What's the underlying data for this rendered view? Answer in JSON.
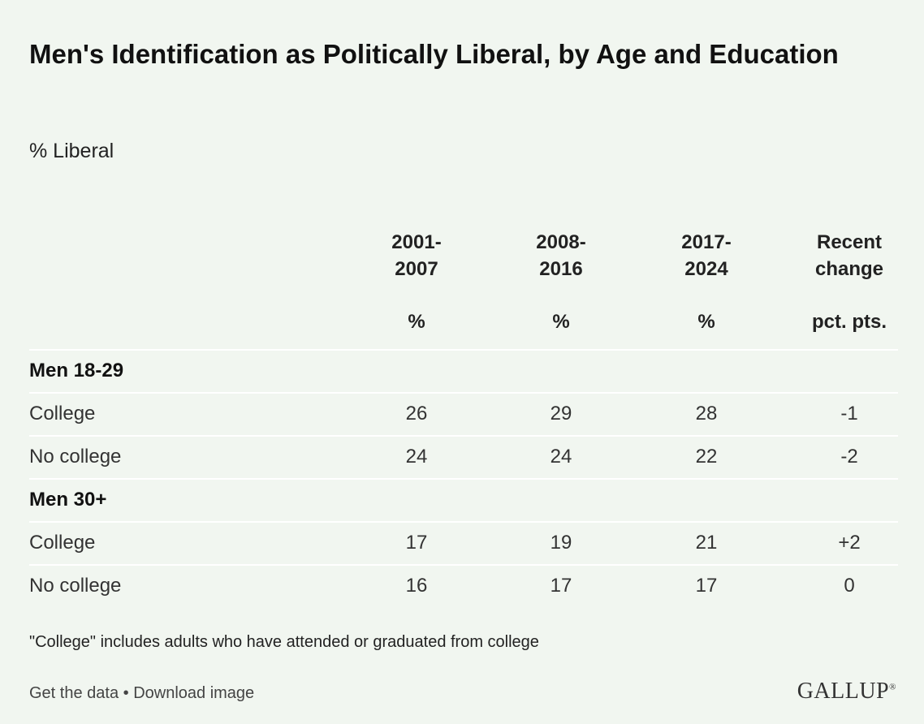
{
  "chart_data": {
    "type": "table",
    "title": "Men's Identification as Politically Liberal, by Age and Education",
    "subtitle": "% Liberal",
    "columns": [
      {
        "label": "2001-\n2007",
        "unit": "%"
      },
      {
        "label": "2008-\n2016",
        "unit": "%"
      },
      {
        "label": "2017-\n2024",
        "unit": "%"
      },
      {
        "label": "Recent\nchange",
        "unit": "pct. pts."
      }
    ],
    "rows": [
      {
        "type": "group",
        "label": "Men 18-29",
        "values": []
      },
      {
        "type": "data",
        "label": "College",
        "values": [
          "26",
          "29",
          "28",
          "-1"
        ]
      },
      {
        "type": "data",
        "label": "No college",
        "values": [
          "24",
          "24",
          "22",
          "-2"
        ]
      },
      {
        "type": "group",
        "label": "Men 30+",
        "values": []
      },
      {
        "type": "data",
        "label": "College",
        "values": [
          "17",
          "19",
          "21",
          "+2"
        ]
      },
      {
        "type": "data",
        "label": "No college",
        "values": [
          "16",
          "17",
          "17",
          "0"
        ]
      }
    ],
    "note": "\"College\" includes adults who have attended or graduated from college"
  },
  "footer": {
    "get_data": "Get the data",
    "separator": " • ",
    "download": "Download image",
    "logo": "GALLUP",
    "logo_mark": "®"
  }
}
